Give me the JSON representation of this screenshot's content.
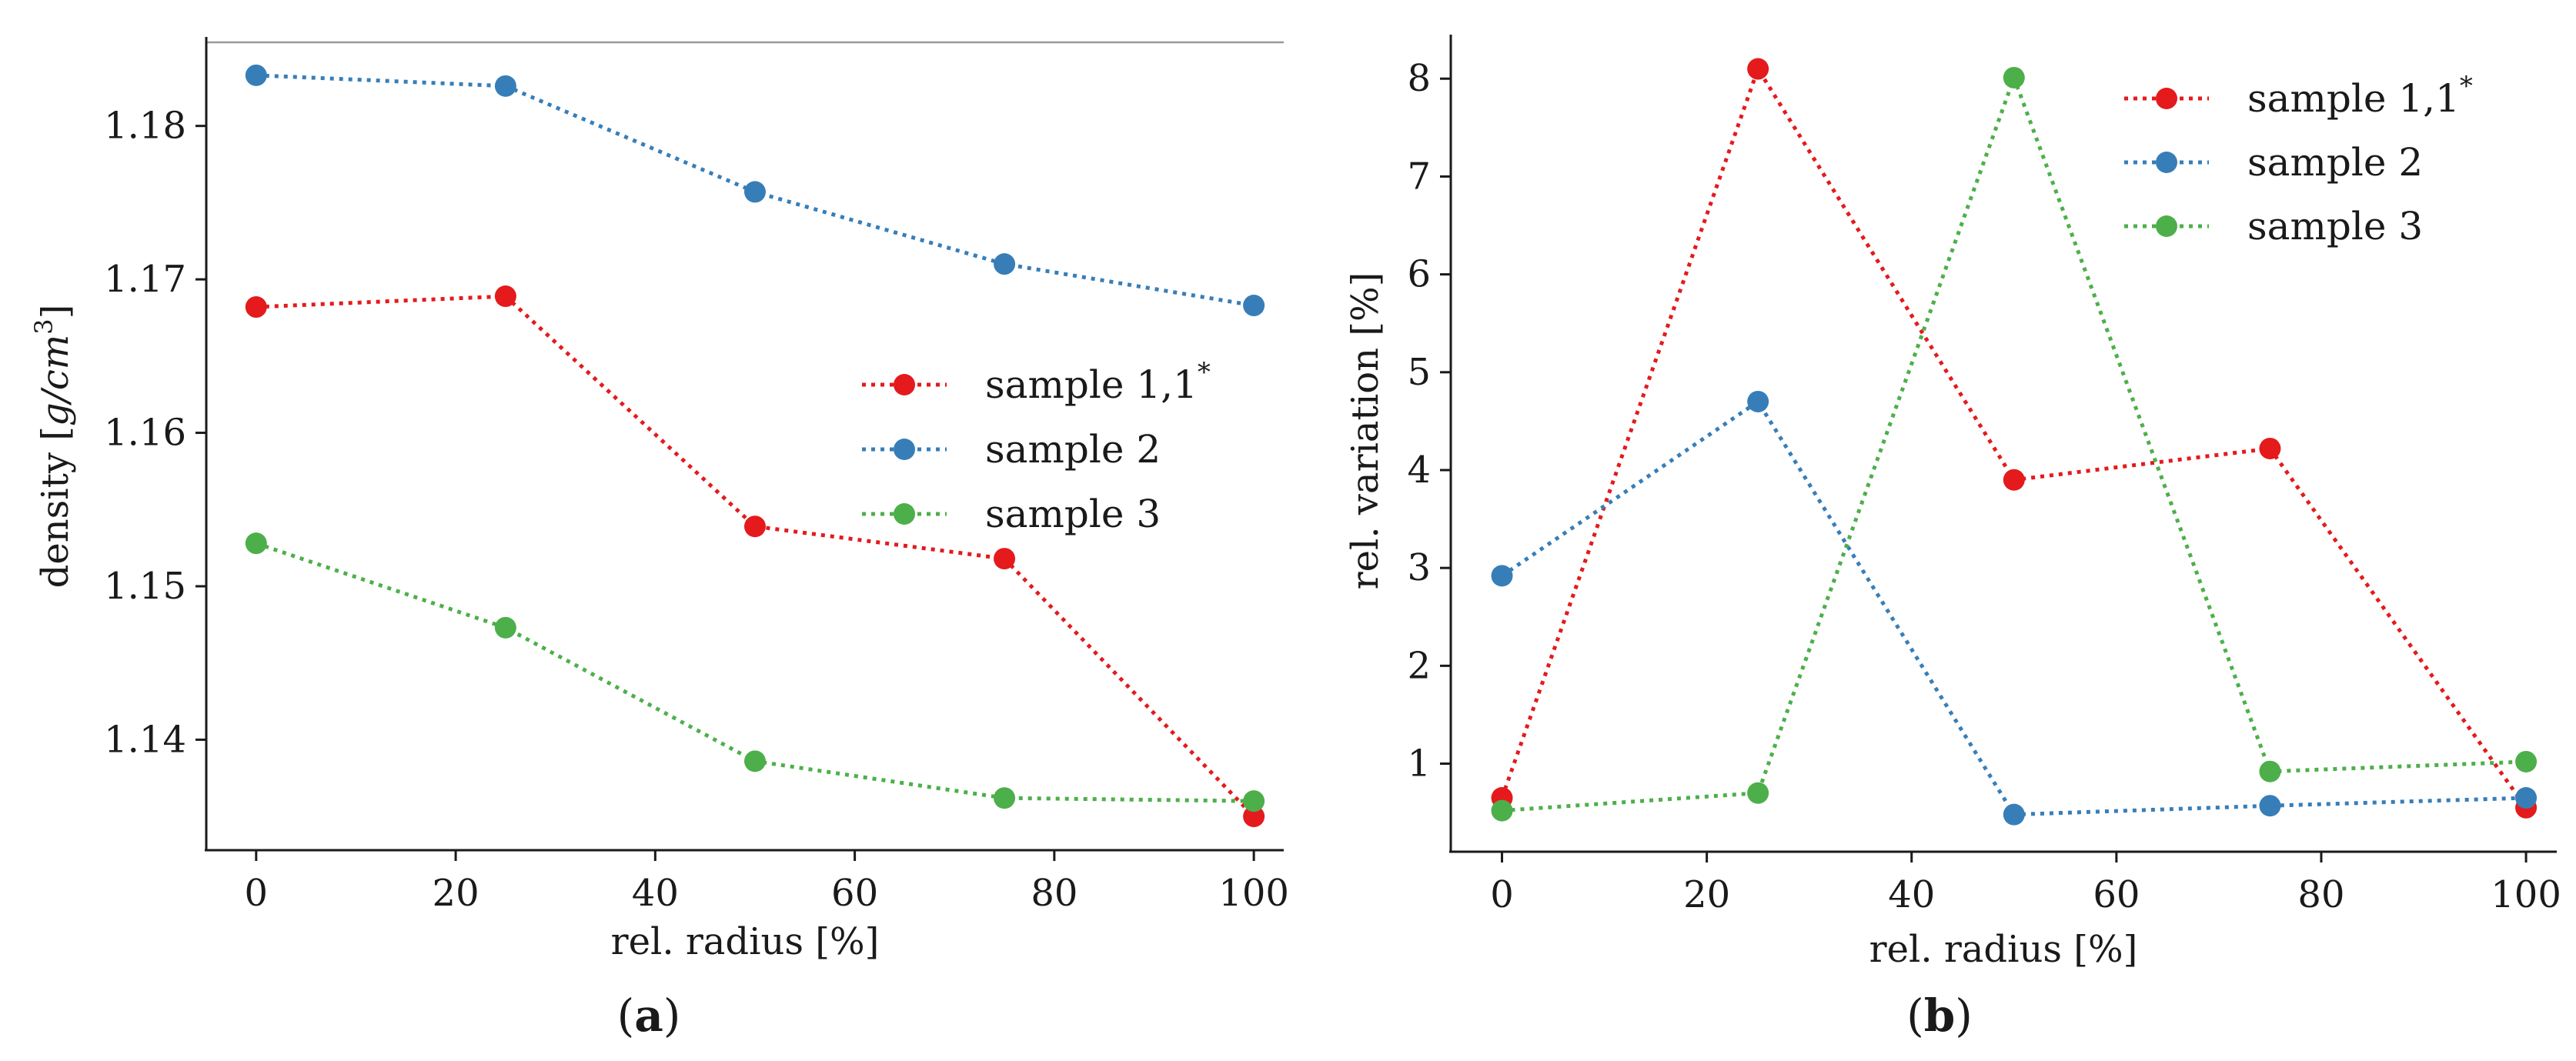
{
  "chart_data": [
    {
      "type": "line",
      "panel_label": "a",
      "title": "",
      "xlabel": "rel. radius [%]",
      "ylabel_prefix": "density [",
      "ylabel_unit": "g/cm",
      "ylabel_exp": "3",
      "ylabel_suffix": "]",
      "xlim": [
        -5,
        103
      ],
      "ylim": [
        1.1328,
        1.1858
      ],
      "xticks": [
        0,
        20,
        40,
        60,
        80,
        100
      ],
      "xtick_labels": [
        "0",
        "20",
        "40",
        "60",
        "80",
        "100"
      ],
      "yticks": [
        1.14,
        1.15,
        1.16,
        1.17,
        1.18
      ],
      "ytick_labels": [
        "1.14",
        "1.15",
        "1.16",
        "1.17",
        "1.18"
      ],
      "x": [
        0,
        25,
        50,
        75,
        100
      ],
      "legend_position": "center-right",
      "series": [
        {
          "name": "sample 1,1",
          "name_sup": "*",
          "color": "#e41a1c",
          "values": [
            1.1682,
            1.1689,
            1.1539,
            1.1518,
            1.135
          ]
        },
        {
          "name": "sample 2",
          "name_sup": "",
          "color": "#377eb8",
          "values": [
            1.1833,
            1.1826,
            1.1757,
            1.171,
            1.1683
          ]
        },
        {
          "name": "sample 3",
          "name_sup": "",
          "color": "#4daf4a",
          "values": [
            1.1528,
            1.1473,
            1.1386,
            1.1362,
            1.136
          ]
        }
      ]
    },
    {
      "type": "line",
      "panel_label": "b",
      "title": "",
      "xlabel": "rel. radius [%]",
      "ylabel": "rel. variation [%]",
      "xlim": [
        -5,
        103
      ],
      "ylim": [
        0.1,
        8.45
      ],
      "xticks": [
        0,
        20,
        40,
        60,
        80,
        100
      ],
      "xtick_labels": [
        "0",
        "20",
        "40",
        "60",
        "80",
        "100"
      ],
      "yticks": [
        1,
        2,
        3,
        4,
        5,
        6,
        7,
        8
      ],
      "ytick_labels": [
        "1",
        "2",
        "3",
        "4",
        "5",
        "6",
        "7",
        "8"
      ],
      "x": [
        0,
        25,
        50,
        75,
        100
      ],
      "legend_position": "top-right",
      "series": [
        {
          "name": "sample 1,1",
          "name_sup": "*",
          "color": "#e41a1c",
          "values": [
            0.65,
            8.1,
            3.9,
            4.22,
            0.55
          ]
        },
        {
          "name": "sample 2",
          "name_sup": "",
          "color": "#377eb8",
          "values": [
            2.92,
            4.7,
            0.48,
            0.57,
            0.65
          ]
        },
        {
          "name": "sample 3",
          "name_sup": "",
          "color": "#4daf4a",
          "values": [
            0.52,
            0.7,
            8.01,
            0.92,
            1.02
          ]
        }
      ]
    }
  ]
}
